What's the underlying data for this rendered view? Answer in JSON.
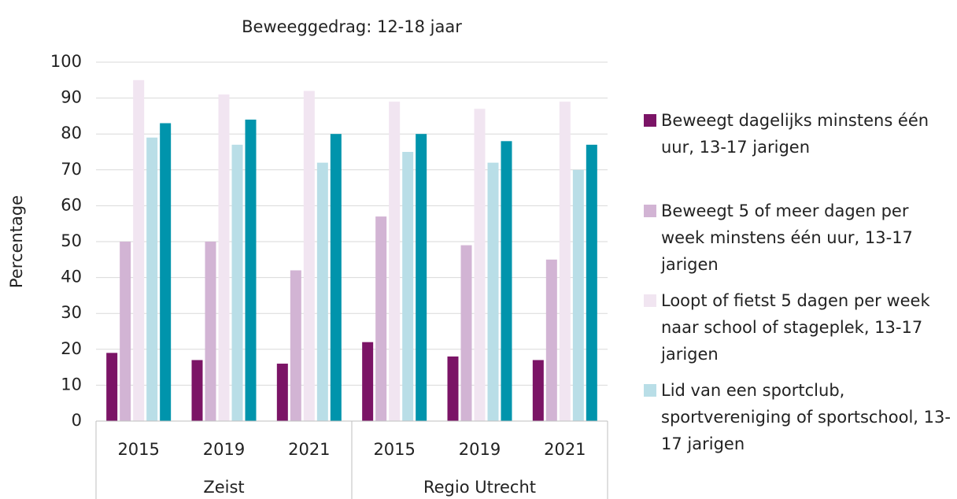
{
  "chart_data": {
    "type": "bar",
    "title": "Beweeggedrag: 12-18 jaar",
    "y_label": "Percentage",
    "categories": [
      "2015",
      "2019",
      "2021",
      "2015",
      "2019",
      "2021"
    ],
    "groups": [
      {
        "label": "Zeist",
        "size": 3
      },
      {
        "label": "Regio Utrecht",
        "size": 3
      }
    ],
    "series": [
      {
        "name": "Beweegt dagelijks minstens één uur, 13-17 jarigen",
        "color": "#7b1466",
        "values": [
          19,
          17,
          16,
          22,
          18,
          17
        ]
      },
      {
        "name": "Beweegt 5 of meer dagen per week minstens één uur, 13-17 jarigen",
        "color": "#d2b4d4",
        "values": [
          50,
          50,
          42,
          57,
          49,
          45
        ]
      },
      {
        "name": "Loopt of fietst 5 dagen per week naar school of stageplek, 13-17 jarigen",
        "color": "#f1e5f1",
        "values": [
          95,
          91,
          92,
          89,
          87,
          89
        ]
      },
      {
        "name": "Lid van een sportclub, sportvereniging of sportschool, 13-17 jarigen",
        "color": "#b9dee7",
        "values": [
          79,
          77,
          72,
          75,
          72,
          70
        ]
      },
      {
        "color": "#0094ac",
        "values": [
          83,
          84,
          80,
          80,
          78,
          77
        ]
      }
    ],
    "ylim": [
      0,
      100
    ],
    "yticks": [
      0,
      10,
      20,
      30,
      40,
      50,
      60,
      70,
      80,
      90,
      100
    ],
    "grid": true,
    "legend": "right"
  }
}
